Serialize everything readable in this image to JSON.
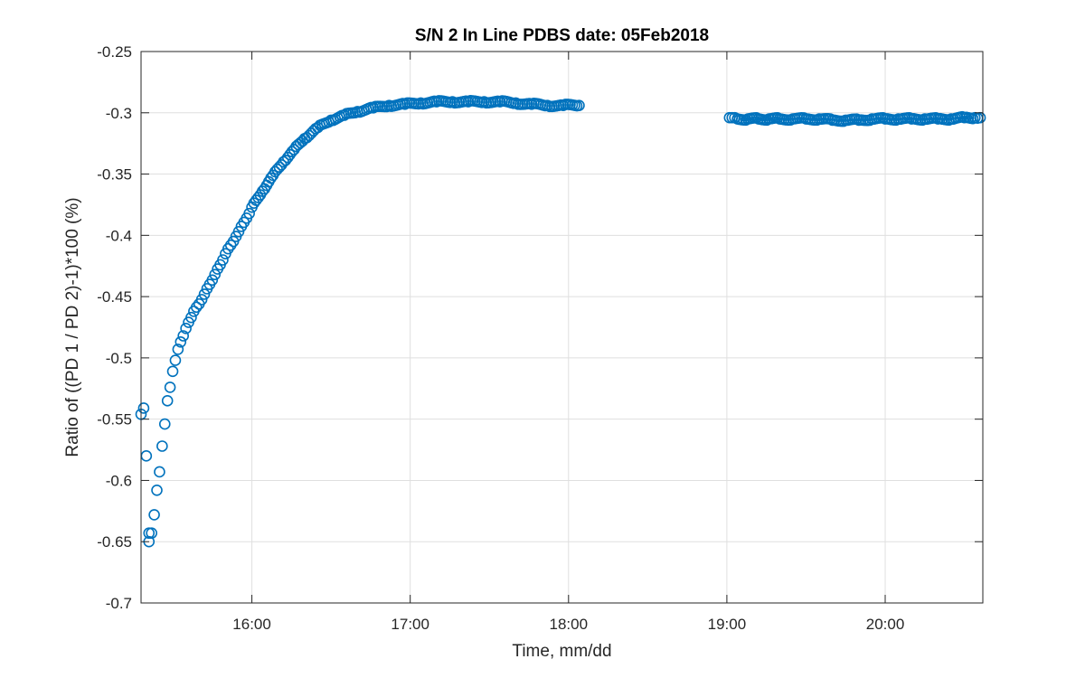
{
  "chart_data": {
    "type": "scatter",
    "title": "S/N 2 In Line PDBS date: 05Feb2018",
    "xlabel": "Time, mm/dd",
    "ylabel": "Ratio of ((PD 1 / PD 2)-1)*100 (%)",
    "xlim": [
      "15:18",
      "20:37"
    ],
    "ylim": [
      -0.7,
      -0.25
    ],
    "xticks": [
      "16:00",
      "17:00",
      "18:00",
      "19:00",
      "20:00"
    ],
    "yticks": [
      -0.25,
      -0.3,
      -0.35,
      -0.4,
      -0.45,
      -0.5,
      -0.55,
      -0.6,
      -0.65,
      -0.7
    ],
    "ytick_labels": [
      "-0.25",
      "-0.3",
      "-0.35",
      "-0.4",
      "-0.45",
      "-0.5",
      "-0.55",
      "-0.6",
      "-0.65",
      "-0.7"
    ],
    "grid": true,
    "marker": "circle",
    "color": "#0072bd",
    "series": [
      {
        "points": [
          [
            "15:18",
            -0.546
          ],
          [
            "15:19",
            -0.541
          ],
          [
            "15:20",
            -0.58
          ],
          [
            "15:21",
            -0.643
          ],
          [
            "15:21",
            -0.65
          ],
          [
            "15:22",
            -0.643
          ],
          [
            "15:23",
            -0.628
          ],
          [
            "15:24",
            -0.608
          ],
          [
            "15:25",
            -0.593
          ],
          [
            "15:26",
            -0.572
          ],
          [
            "15:27",
            -0.554
          ],
          [
            "15:28",
            -0.535
          ],
          [
            "15:29",
            -0.524
          ],
          [
            "15:30",
            -0.511
          ],
          [
            "15:31",
            -0.502
          ],
          [
            "15:32",
            -0.493
          ],
          [
            "15:33",
            -0.487
          ],
          [
            "15:34",
            -0.482
          ],
          [
            "15:35",
            -0.476
          ],
          [
            "15:36",
            -0.471
          ],
          [
            "15:37",
            -0.467
          ],
          [
            "15:38",
            -0.462
          ],
          [
            "15:40",
            -0.456
          ],
          [
            "15:42",
            -0.448
          ],
          [
            "15:44",
            -0.44
          ],
          [
            "15:46",
            -0.432
          ],
          [
            "15:48",
            -0.424
          ],
          [
            "15:50",
            -0.415
          ],
          [
            "15:52",
            -0.408
          ],
          [
            "15:55",
            -0.397
          ],
          [
            "15:58",
            -0.386
          ],
          [
            "16:00",
            -0.377
          ],
          [
            "16:04",
            -0.364
          ],
          [
            "16:08",
            -0.351
          ],
          [
            "16:12",
            -0.34
          ],
          [
            "16:16",
            -0.33
          ],
          [
            "16:20",
            -0.321
          ],
          [
            "16:25",
            -0.312
          ],
          [
            "16:30",
            -0.306
          ],
          [
            "16:35",
            -0.302
          ],
          [
            "16:40",
            -0.299
          ],
          [
            "16:46",
            -0.296
          ],
          [
            "16:52",
            -0.294
          ],
          [
            "16:58",
            -0.293
          ],
          [
            "17:04",
            -0.292
          ],
          [
            "17:10",
            -0.291
          ],
          [
            "17:16",
            -0.291
          ],
          [
            "17:22",
            -0.291
          ],
          [
            "17:28",
            -0.291
          ],
          [
            "17:34",
            -0.291
          ],
          [
            "17:40",
            -0.292
          ],
          [
            "17:46",
            -0.293
          ],
          [
            "17:52",
            -0.294
          ],
          [
            "17:58",
            -0.294
          ],
          [
            "18:04",
            -0.294
          ]
        ]
      },
      {
        "points": [
          [
            "19:01",
            -0.304
          ],
          [
            "19:04",
            -0.305
          ],
          [
            "19:08",
            -0.305
          ],
          [
            "19:12",
            -0.305
          ],
          [
            "19:16",
            -0.305
          ],
          [
            "19:20",
            -0.305
          ],
          [
            "19:25",
            -0.305
          ],
          [
            "19:30",
            -0.305
          ],
          [
            "19:35",
            -0.305
          ],
          [
            "19:40",
            -0.306
          ],
          [
            "19:45",
            -0.306
          ],
          [
            "19:50",
            -0.306
          ],
          [
            "19:55",
            -0.305
          ],
          [
            "20:00",
            -0.305
          ],
          [
            "20:05",
            -0.305
          ],
          [
            "20:10",
            -0.305
          ],
          [
            "20:15",
            -0.305
          ],
          [
            "20:20",
            -0.305
          ],
          [
            "20:25",
            -0.305
          ],
          [
            "20:30",
            -0.304
          ],
          [
            "20:34",
            -0.304
          ],
          [
            "20:36",
            -0.304
          ]
        ]
      }
    ]
  }
}
